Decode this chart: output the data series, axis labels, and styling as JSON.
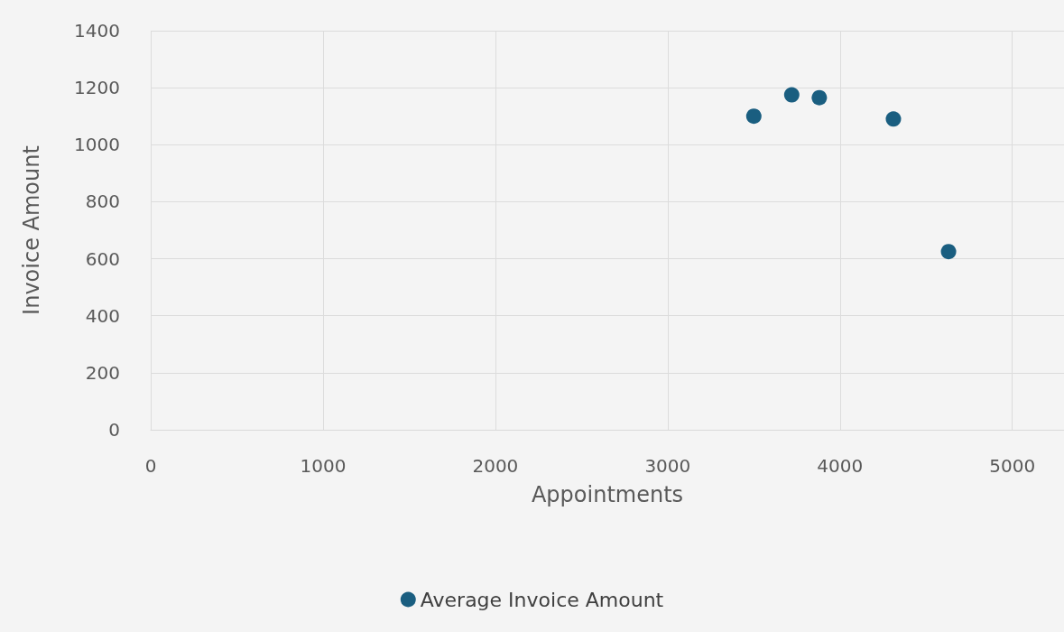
{
  "chart_data": {
    "type": "scatter",
    "xlabel": "Appointments",
    "ylabel": "Invoice Amount",
    "x": [
      3500,
      3720,
      3880,
      4310,
      4630
    ],
    "series": [
      {
        "name": "Average Invoice Amount",
        "color": "#1a5e80",
        "values": [
          1100,
          1175,
          1165,
          1090,
          625
        ]
      }
    ],
    "xlim": [
      0,
      5300
    ],
    "xticks": [
      0,
      1000,
      2000,
      3000,
      4000,
      5000
    ],
    "ylim": [
      0,
      1400
    ],
    "yticks": [
      0,
      200,
      400,
      600,
      800,
      1000,
      1200,
      1400
    ],
    "grid": true,
    "legend": "bottom",
    "marker": "circle"
  }
}
